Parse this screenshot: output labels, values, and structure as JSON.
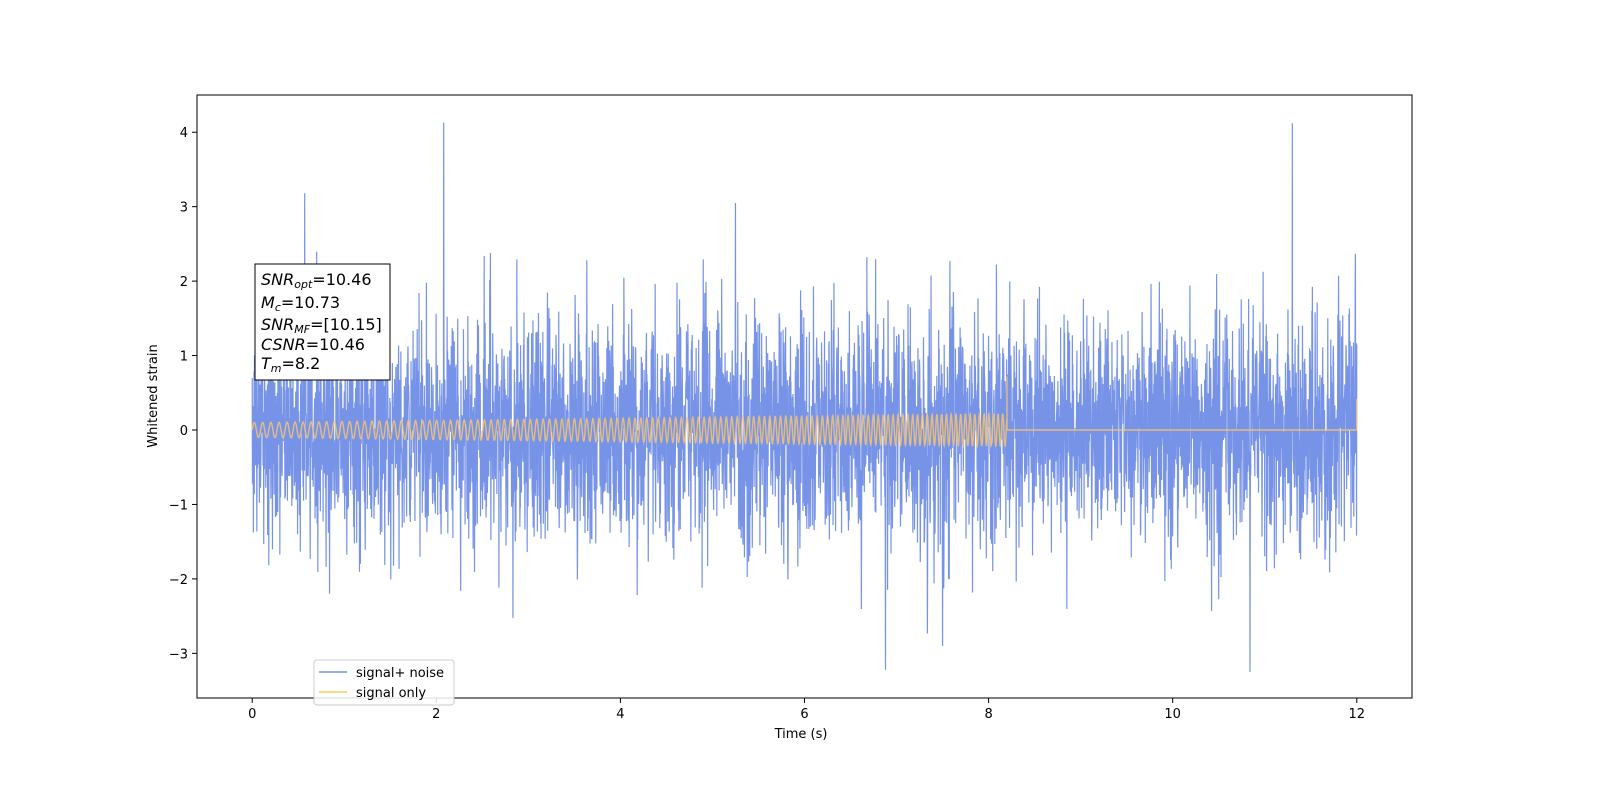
{
  "chart_data": {
    "type": "line",
    "xlabel": "Time (s)",
    "ylabel": "Whitened strain",
    "xlim": [
      -0.6,
      12.6
    ],
    "ylim": [
      -3.6,
      4.5
    ],
    "x_ticks": [
      0,
      2,
      4,
      6,
      8,
      10,
      12
    ],
    "x_tick_labels": [
      "0",
      "2",
      "4",
      "6",
      "8",
      "10",
      "12"
    ],
    "y_ticks": [
      -3,
      -2,
      -1,
      0,
      1,
      2,
      3,
      4
    ],
    "y_tick_labels": [
      "−3",
      "−2",
      "−1",
      "0",
      "1",
      "2",
      "3",
      "4"
    ],
    "grid": false,
    "legend_position": "lower-left",
    "series": [
      {
        "name": "signal+ noise",
        "color": "#7793e7",
        "x_range": [
          0,
          12
        ],
        "approx_std": 0.75,
        "peaks": [
          {
            "x": 0.57,
            "y": 3.18
          },
          {
            "x": 2.08,
            "y": 4.13
          },
          {
            "x": 5.25,
            "y": 3.05
          },
          {
            "x": 6.88,
            "y": -3.22
          },
          {
            "x": 10.84,
            "y": -3.25
          },
          {
            "x": 11.3,
            "y": 4.12
          }
        ]
      },
      {
        "name": "signal only",
        "color": "#ffc766",
        "x_range": [
          0,
          12
        ],
        "chirp_end_time": 8.2,
        "chirp_start_amplitude": 0.1,
        "chirp_end_amplitude": 0.22,
        "spike_at_end": 0.72,
        "final_spike_time": 12.0,
        "final_spike_value": 0.42
      }
    ],
    "annotation": {
      "snr_opt": {
        "label": "SNR",
        "sub": "opt",
        "value": "=10.46"
      },
      "mc": {
        "label": "M",
        "sub": "c",
        "value": "=10.73"
      },
      "snr_mf": {
        "label": "SNR",
        "sub": "MF",
        "value": "=[10.15]"
      },
      "csnr": {
        "label": "CSNR",
        "value": "=10.46"
      },
      "tm": {
        "label": "T",
        "sub": "m",
        "value": "=8.2"
      }
    }
  }
}
